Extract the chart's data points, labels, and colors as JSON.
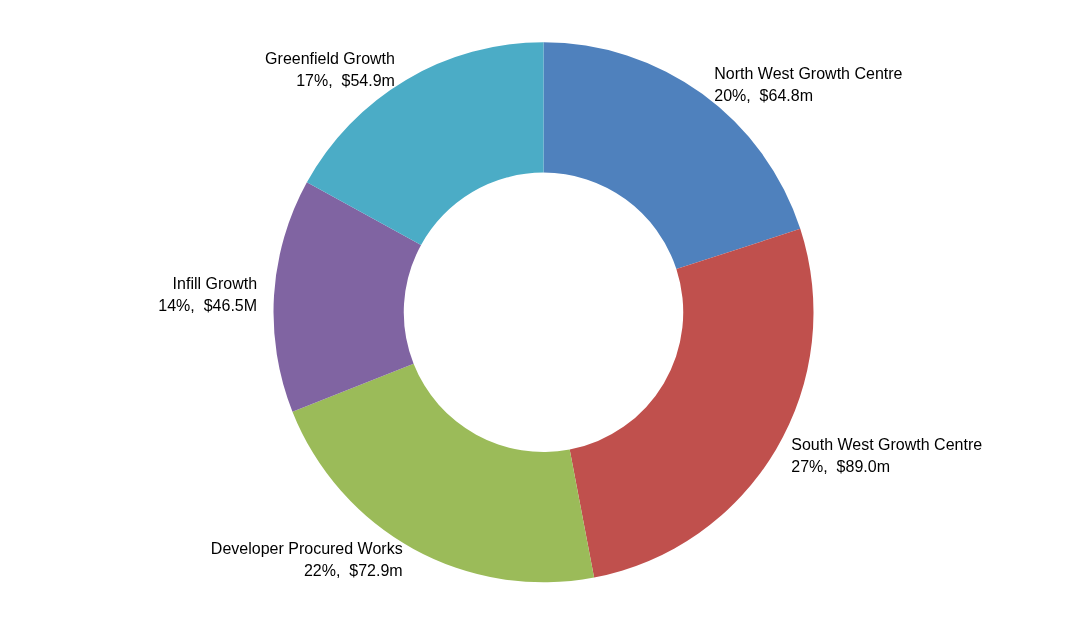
{
  "chart_data": {
    "type": "donut",
    "categories": [
      "North West Growth Centre",
      "South West Growth Centre",
      "Developer Procured Works",
      "Infill Growth",
      "Greenfield Growth"
    ],
    "values": [
      20,
      27,
      22,
      14,
      17
    ],
    "value_labels": [
      "20%,  $64.8m",
      "27%,  $89.0m",
      "22%,  $72.9m",
      "14%,  $46.5M",
      "17%,  $54.9m"
    ],
    "colors": [
      "#4f81bd",
      "#c0504d",
      "#9bbb59",
      "#8064a2",
      "#4bacc6"
    ],
    "legend": false
  }
}
